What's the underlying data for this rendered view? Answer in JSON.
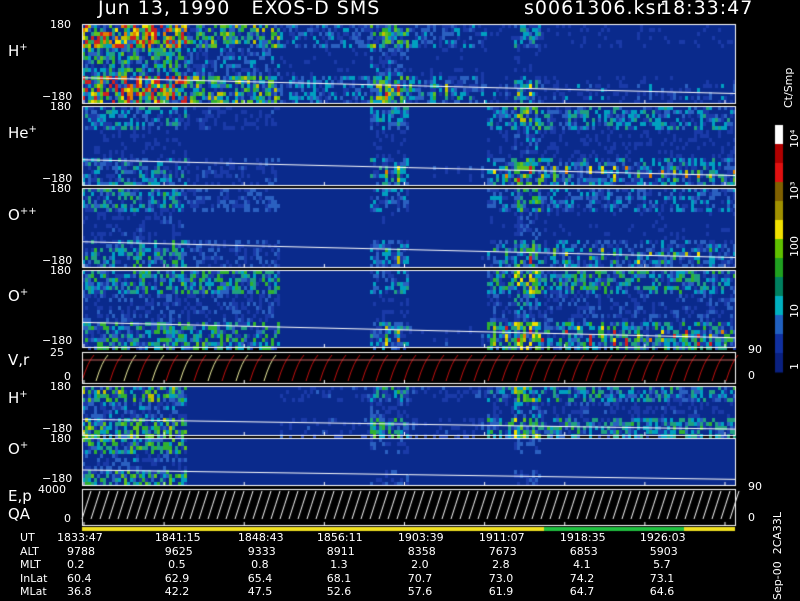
{
  "header": {
    "title": "Jun 13, 1990   EXOS-D SMS",
    "file": "s0061306.ksr",
    "time": "18:33:47"
  },
  "colors": {
    "background": "#000000",
    "spectrogram_base": "#0a2a8c",
    "trace": "#ffffff",
    "vr_band": "#c01010",
    "qa_yellow": "#f0e020",
    "qa_green": "#20c040"
  },
  "chart_data": [
    {
      "type": "heatmap",
      "panel_label": "H",
      "panel_sup": "+",
      "ylim": [
        -180,
        180
      ],
      "ytick_labels": [
        "180",
        "−180"
      ]
    },
    {
      "type": "heatmap",
      "panel_label": "He",
      "panel_sup": "+",
      "ylim": [
        -180,
        180
      ],
      "ytick_labels": [
        "180",
        "−180"
      ]
    },
    {
      "type": "heatmap",
      "panel_label": "O",
      "panel_sup": "++",
      "ylim": [
        -180,
        180
      ],
      "ytick_labels": [
        "180",
        "−180"
      ]
    },
    {
      "type": "heatmap",
      "panel_label": "O",
      "panel_sup": "+",
      "ylim": [
        -180,
        180
      ],
      "ytick_labels": [
        "180",
        "−180"
      ]
    },
    {
      "type": "line",
      "panel_label": "V,r",
      "ylim": [
        0,
        25
      ],
      "ytick_labels": [
        "25",
        "0"
      ],
      "right_ytick_labels": [
        "90",
        "0"
      ]
    },
    {
      "type": "heatmap",
      "panel_label": "H",
      "panel_sup": "+",
      "ylim": [
        -180,
        180
      ],
      "ytick_labels": [
        "180",
        "−180"
      ]
    },
    {
      "type": "heatmap",
      "panel_label": "O",
      "panel_sup": "+",
      "ylim": [
        -180,
        180
      ],
      "ytick_labels": [
        "180",
        "−180"
      ]
    },
    {
      "type": "line",
      "panel_label": "E,p",
      "panel_label2": "QA",
      "ylim": [
        0,
        4000
      ],
      "ytick_labels": [
        "4000",
        "0"
      ],
      "right_ytick_labels": [
        "90",
        "0"
      ]
    }
  ],
  "colorbar": {
    "unit": "Ct/Smp",
    "tick_labels": [
      "10⁴",
      "10³",
      "100",
      "10",
      "1"
    ],
    "colors": [
      "#ffffff",
      "#b00000",
      "#e01010",
      "#806000",
      "#a09000",
      "#f0e000",
      "#60c000",
      "#20a020",
      "#008060",
      "#00b0c0",
      "#2060c0",
      "#1030a0",
      "#0a2080"
    ]
  },
  "axis_table": {
    "rows": [
      {
        "label": "UT",
        "values": [
          "1833:47",
          "1841:15",
          "1848:43",
          "1856:11",
          "1903:39",
          "1911:07",
          "1918:35",
          "1926:03"
        ]
      },
      {
        "label": "ALT",
        "values": [
          "9788",
          "9625",
          "9333",
          "8911",
          "8358",
          "7673",
          "6853",
          "5903"
        ]
      },
      {
        "label": "MLT",
        "values": [
          "0.2",
          "0.5",
          "0.8",
          "1.3",
          "2.0",
          "2.8",
          "4.1",
          "5.7"
        ]
      },
      {
        "label": "InLat",
        "values": [
          "60.4",
          "62.9",
          "65.4",
          "68.1",
          "70.7",
          "73.0",
          "74.2",
          "73.1"
        ]
      },
      {
        "label": "MLat",
        "values": [
          "36.8",
          "42.2",
          "47.5",
          "52.6",
          "57.6",
          "61.9",
          "64.7",
          "64.6"
        ]
      }
    ]
  },
  "footer": {
    "date_code": "Sep-00  2CA33L"
  }
}
